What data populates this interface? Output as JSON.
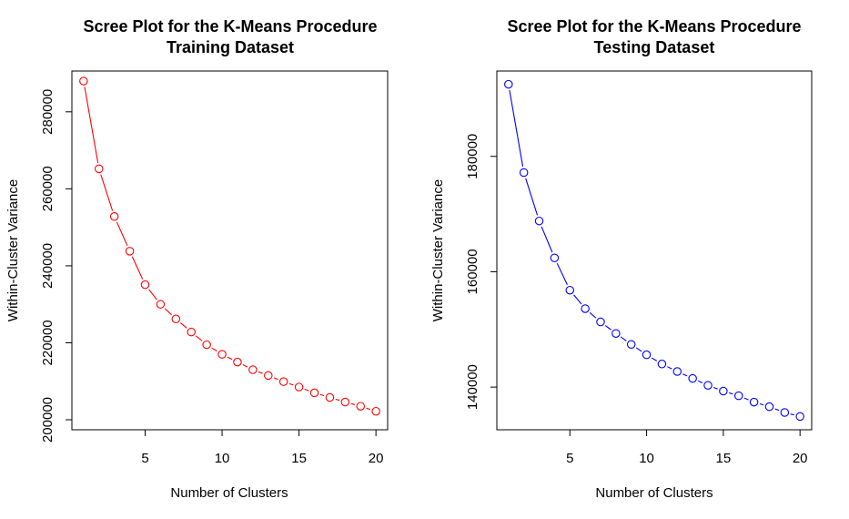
{
  "chart_data": [
    {
      "type": "line",
      "title": "Scree Plot for the K-Means Procedure",
      "subtitle": "Training Dataset",
      "xlabel": "Number of Clusters",
      "ylabel": "Within-Cluster Variance",
      "color": "#ff0000",
      "xlim": [
        0.24,
        20.76
      ],
      "ylim": [
        197400,
        290600
      ],
      "x_ticks": [
        5,
        10,
        15,
        20
      ],
      "y_ticks": [
        200000,
        220000,
        240000,
        260000,
        280000
      ],
      "grid": false,
      "x": [
        1,
        2,
        3,
        4,
        5,
        6,
        7,
        8,
        9,
        10,
        11,
        12,
        13,
        14,
        15,
        16,
        17,
        18,
        19,
        20
      ],
      "y": [
        288000,
        265200,
        252800,
        243800,
        235100,
        230000,
        226200,
        222800,
        219500,
        217000,
        215000,
        213000,
        211500,
        209900,
        208500,
        207000,
        205800,
        204600,
        203500,
        202200
      ]
    },
    {
      "type": "line",
      "title": "Scree Plot for the K-Means Procedure",
      "subtitle": "Testing Dataset",
      "xlabel": "Number of Clusters",
      "ylabel": "Within-Cluster Variance",
      "color": "#0000ff",
      "xlim": [
        0.24,
        20.76
      ],
      "ylim": [
        132600,
        194800
      ],
      "x_ticks": [
        5,
        10,
        15,
        20
      ],
      "y_ticks": [
        140000,
        160000,
        180000
      ],
      "grid": false,
      "x": [
        1,
        2,
        3,
        4,
        5,
        6,
        7,
        8,
        9,
        10,
        11,
        12,
        13,
        14,
        15,
        16,
        17,
        18,
        19,
        20
      ],
      "y": [
        192500,
        177200,
        168800,
        162400,
        156800,
        153600,
        151300,
        149300,
        147400,
        145600,
        144000,
        142700,
        141500,
        140300,
        139300,
        138500,
        137400,
        136600,
        135600,
        134900
      ]
    }
  ]
}
